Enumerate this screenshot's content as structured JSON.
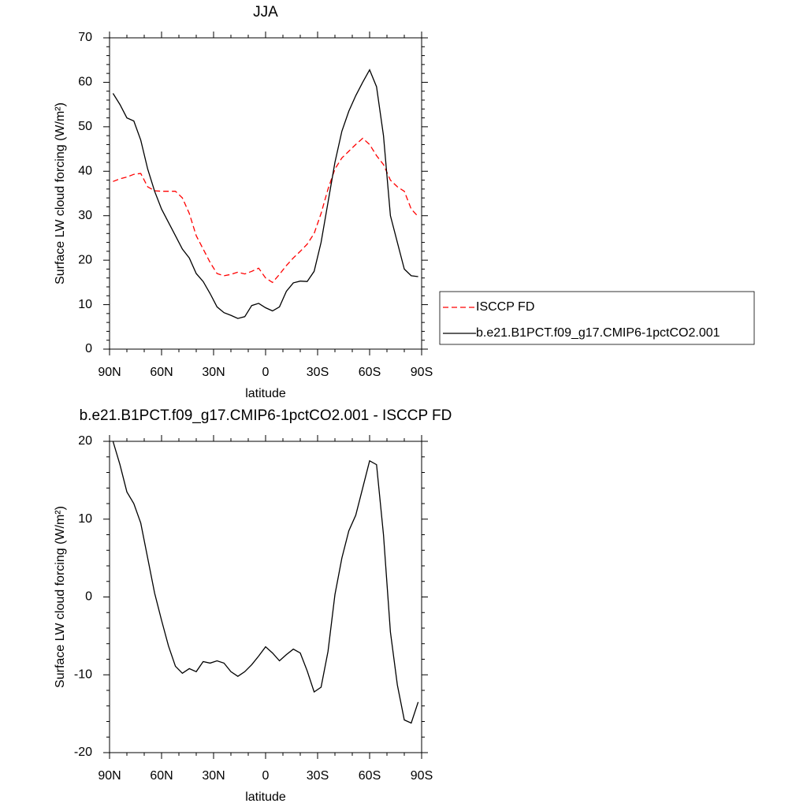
{
  "chart_data": [
    {
      "type": "line",
      "title": "JJA",
      "xlabel": "latitude",
      "ylabel": "Surface LW cloud forcing (W/m²)",
      "x": [
        88,
        84,
        80,
        76,
        72,
        68,
        64,
        60,
        56,
        52,
        48,
        44,
        40,
        36,
        32,
        28,
        24,
        20,
        16,
        12,
        8,
        4,
        0,
        -4,
        -8,
        -12,
        -16,
        -20,
        -24,
        -28,
        -32,
        -36,
        -40,
        -44,
        -48,
        -52,
        -56,
        -60,
        -64,
        -68,
        -72,
        -76,
        -80,
        -84,
        -88
      ],
      "xlim": [
        90,
        -90
      ],
      "xticks": [
        {
          "value": 90,
          "label": "90N"
        },
        {
          "value": 60,
          "label": "60N"
        },
        {
          "value": 30,
          "label": "30N"
        },
        0,
        {
          "value": -30,
          "label": "30S"
        },
        {
          "value": -60,
          "label": "60S"
        },
        {
          "value": -90,
          "label": "90S"
        }
      ],
      "ylim": [
        0,
        70
      ],
      "yticks": [
        0,
        10,
        20,
        30,
        40,
        50,
        60,
        70
      ],
      "legend": "right",
      "series": [
        {
          "name": "ISCCP FD",
          "color": "#ff0000",
          "dashed": true,
          "values": [
            37.7,
            38.3,
            38.7,
            39.3,
            39.5,
            36.5,
            35.6,
            35.5,
            35.5,
            35.5,
            34,
            30.5,
            25.5,
            22.5,
            19.5,
            17,
            16.5,
            16.8,
            17.3,
            16.9,
            17.5,
            18.2,
            16,
            15,
            16.8,
            18.8,
            20.5,
            22,
            23.6,
            26,
            30.5,
            36,
            40.5,
            43,
            44.5,
            46,
            47.4,
            46,
            43.5,
            41.5,
            38,
            36.5,
            35.5,
            31.5,
            29.8
          ]
        },
        {
          "name": "b.e21.B1PCT.f09_g17.CMIP6-1pctCO2.001",
          "color": "#000000",
          "dashed": false,
          "values": [
            57.5,
            55,
            52,
            51.3,
            47,
            40.5,
            35.5,
            31.5,
            28.5,
            25.5,
            22.5,
            20.5,
            17,
            15.2,
            12.5,
            9.5,
            8.2,
            7.6,
            6.9,
            7.3,
            9.8,
            10.3,
            9.3,
            8.6,
            9.5,
            13,
            14.9,
            15.3,
            15.2,
            17.5,
            24,
            33,
            42,
            49,
            53.5,
            57,
            60,
            62.8,
            59,
            48,
            30,
            24,
            18,
            16.5,
            16.3
          ]
        }
      ]
    },
    {
      "type": "line",
      "title": "b.e21.B1PCT.f09_g17.CMIP6-1pctCO2.001 - ISCCP FD",
      "xlabel": "latitude",
      "ylabel": "Surface LW cloud forcing (W/m²)",
      "x": [
        88,
        84,
        80,
        76,
        72,
        68,
        64,
        60,
        56,
        52,
        48,
        44,
        40,
        36,
        32,
        28,
        24,
        20,
        16,
        12,
        8,
        4,
        0,
        -4,
        -8,
        -12,
        -16,
        -20,
        -24,
        -28,
        -32,
        -36,
        -40,
        -44,
        -48,
        -52,
        -56,
        -60,
        -64,
        -68,
        -72,
        -76,
        -80,
        -84,
        -88
      ],
      "xlim": [
        90,
        -90
      ],
      "xticks": [
        {
          "value": 90,
          "label": "90N"
        },
        {
          "value": 60,
          "label": "60N"
        },
        {
          "value": 30,
          "label": "30N"
        },
        0,
        {
          "value": -30,
          "label": "30S"
        },
        {
          "value": -60,
          "label": "60S"
        },
        {
          "value": -90,
          "label": "90S"
        }
      ],
      "ylim": [
        -20,
        20
      ],
      "yticks": [
        -20,
        -10,
        0,
        10,
        20
      ],
      "series": [
        {
          "color": "#000000",
          "dashed": false,
          "values": [
            20,
            17,
            13.5,
            12,
            9.5,
            5,
            0.5,
            -3,
            -6.3,
            -8.9,
            -9.8,
            -9.2,
            -9.6,
            -8.3,
            -8.5,
            -8.2,
            -8.5,
            -9.6,
            -10.2,
            -9.6,
            -8.7,
            -7.6,
            -6.4,
            -7.2,
            -8.2,
            -7.4,
            -6.7,
            -7.2,
            -9.5,
            -12.2,
            -11.6,
            -7,
            0.3,
            5,
            8.5,
            10.5,
            14,
            17.5,
            17,
            8,
            -4.5,
            -11.3,
            -15.8,
            -16.2,
            -13.5
          ]
        }
      ]
    }
  ]
}
